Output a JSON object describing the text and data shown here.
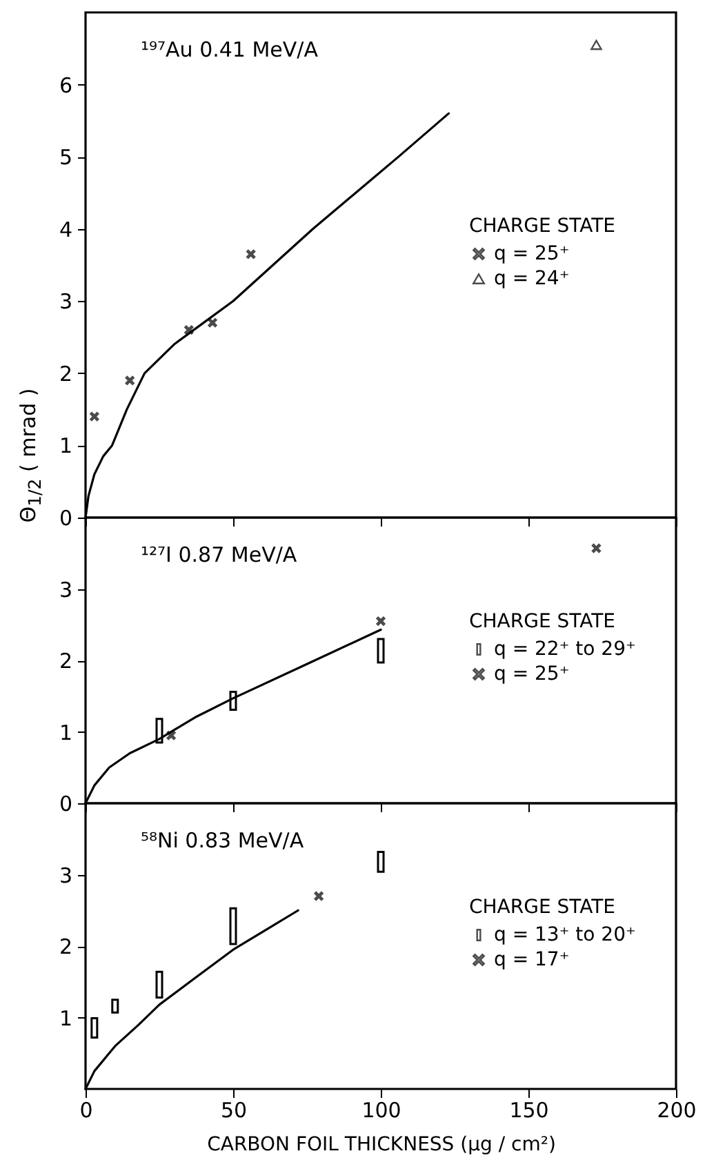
{
  "chart_data": [
    {
      "type": "scatter",
      "ylabel": "Θ$_{1/2}$ ( mrad )",
      "annotations": [
        "¹⁹⁷Au   0.41 MeV/A"
      ],
      "legend_title": "CHARGE STATE",
      "legend": "right",
      "xlim": [
        0,
        200
      ],
      "xticks": [
        0,
        50,
        100,
        150,
        200
      ],
      "ylim": [
        0,
        7
      ],
      "yticks": [
        0,
        1,
        2,
        3,
        4,
        5,
        6
      ],
      "tick_labels": "y",
      "grid": false,
      "series": [
        {
          "name": "q = 25⁺",
          "marker": "cross",
          "color": "#000000",
          "x": [
            3,
            15,
            35,
            43,
            56
          ],
          "values": [
            1.4,
            1.9,
            2.6,
            2.7,
            3.65
          ]
        },
        {
          "name": "q = 24⁺",
          "marker": "triangle",
          "color": "#000000",
          "x": [
            173
          ],
          "values": [
            6.55
          ]
        },
        {
          "type": "line",
          "line_style": "solid",
          "color": "#000000",
          "x": [
            0,
            1,
            3,
            6,
            9,
            14,
            20,
            30,
            40,
            50,
            77,
            106,
            123
          ],
          "values": [
            0,
            0.3,
            0.6,
            0.85,
            1.0,
            1.5,
            2.0,
            2.4,
            2.7,
            3.0,
            4.0,
            5.0,
            5.6
          ]
        }
      ]
    },
    {
      "type": "scatter",
      "annotations": [
        "¹²⁷I   0.87 MeV/A"
      ],
      "legend_title": "CHARGE STATE",
      "legend": "right",
      "xlim": [
        0,
        200
      ],
      "xticks": [
        0,
        50,
        100,
        150,
        200
      ],
      "ylim": [
        0,
        4
      ],
      "yticks": [
        0,
        1,
        2,
        3
      ],
      "tick_labels": "y",
      "grid": false,
      "series": [
        {
          "name": "q = 22⁺ to 29⁺",
          "type": "bar",
          "color": "#000000",
          "x": [
            25,
            50,
            100
          ],
          "base": [
            0.85,
            1.31,
            1.97
          ],
          "values": [
            0.33,
            0.25,
            0.33
          ]
        },
        {
          "name": "q = 25⁺",
          "marker": "cross",
          "color": "#000000",
          "x": [
            29,
            100,
            173
          ],
          "values": [
            0.95,
            2.55,
            3.57
          ]
        },
        {
          "type": "line",
          "line_style": "solid",
          "color": "#000000",
          "x": [
            0,
            3,
            8,
            15,
            25,
            37,
            50,
            75,
            100
          ],
          "values": [
            0,
            0.25,
            0.5,
            0.7,
            0.9,
            1.2,
            1.47,
            1.95,
            2.43
          ]
        }
      ]
    },
    {
      "type": "scatter",
      "annotations": [
        "⁵⁸Ni   0.83 MeV/A"
      ],
      "legend_title": "CHARGE STATE",
      "legend": "right",
      "xlabel": "CARBON FOIL THICKNESS (µg / cm²)",
      "xlim": [
        0,
        200
      ],
      "xticks": [
        0,
        50,
        100,
        150,
        200
      ],
      "ylim": [
        0,
        4
      ],
      "yticks": [
        1,
        2,
        3
      ],
      "grid": false,
      "series": [
        {
          "name": "q = 13⁺ to 20⁺",
          "type": "bar",
          "color": "#000000",
          "x": [
            3,
            10,
            25,
            50,
            100
          ],
          "base": [
            0.72,
            1.07,
            1.28,
            2.03,
            3.04
          ],
          "values": [
            0.27,
            0.18,
            0.36,
            0.5,
            0.28
          ]
        },
        {
          "name": "q = 17⁺",
          "marker": "cross",
          "color": "#000000",
          "x": [
            79
          ],
          "values": [
            2.7
          ]
        },
        {
          "type": "line",
          "line_style": "solid",
          "color": "#000000",
          "x": [
            0,
            3,
            10,
            18,
            25,
            37,
            50,
            62,
            72
          ],
          "values": [
            0,
            0.25,
            0.6,
            0.9,
            1.18,
            1.55,
            1.95,
            2.25,
            2.5
          ]
        }
      ]
    }
  ]
}
